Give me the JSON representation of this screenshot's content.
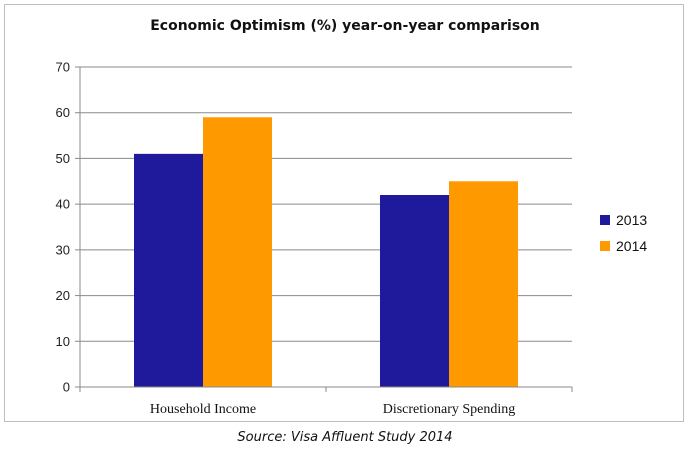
{
  "chart_data": {
    "type": "bar",
    "title": "Economic Optimism (%) year-on-year comparison",
    "categories": [
      "Household Income",
      "Discretionary Spending"
    ],
    "series": [
      {
        "name": "2013",
        "values": [
          51,
          42
        ],
        "color": "#1f1a9c"
      },
      {
        "name": "2014",
        "values": [
          59,
          45
        ],
        "color": "#ff9900"
      }
    ],
    "ylim": [
      0,
      70
    ],
    "yticks": [
      0,
      10,
      20,
      30,
      40,
      50,
      60,
      70
    ],
    "grid": true,
    "legend_position": "right"
  },
  "source_note": "Source: Visa Affluent Study 2014"
}
